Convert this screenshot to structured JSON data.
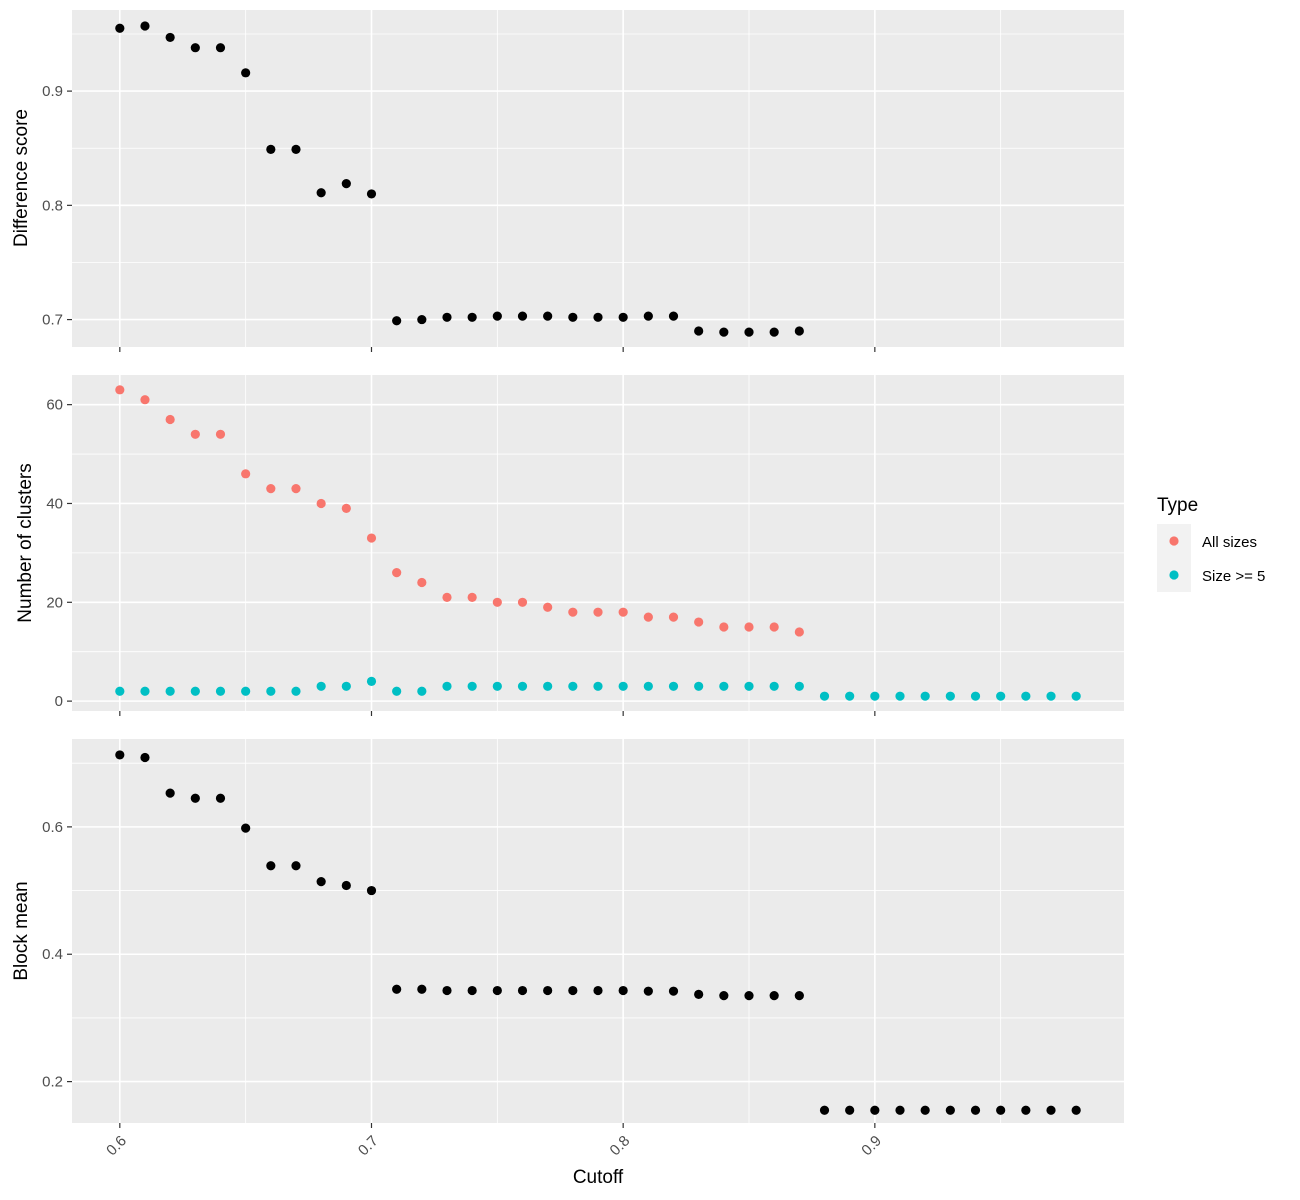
{
  "chart_data": [
    {
      "type": "scatter",
      "panel": "difference",
      "ylabel": "Difference score",
      "ylim": [
        0.676,
        0.971
      ],
      "y_breaks": [
        0.7,
        0.8,
        0.9
      ],
      "y_tick_labels": [
        "0.7",
        "0.8",
        "0.9"
      ],
      "y_minor": [
        0.75,
        0.85,
        0.95
      ],
      "series": [
        {
          "color": "#000000",
          "x": [
            0.6,
            0.61,
            0.62,
            0.63,
            0.64,
            0.65,
            0.66,
            0.67,
            0.68,
            0.69,
            0.7,
            0.71,
            0.72,
            0.73,
            0.74,
            0.75,
            0.76,
            0.77,
            0.78,
            0.79,
            0.8,
            0.81,
            0.82,
            0.83,
            0.84,
            0.85,
            0.86,
            0.87
          ],
          "y": [
            0.955,
            0.957,
            0.947,
            0.938,
            0.938,
            0.916,
            0.849,
            0.849,
            0.811,
            0.819,
            0.81,
            0.699,
            0.7,
            0.702,
            0.702,
            0.703,
            0.703,
            0.703,
            0.702,
            0.702,
            0.702,
            0.703,
            0.703,
            0.69,
            0.689,
            0.689,
            0.689,
            0.69
          ]
        }
      ]
    },
    {
      "type": "scatter",
      "panel": "clusters",
      "ylabel": "Number of clusters",
      "ylim": [
        -2,
        66
      ],
      "y_breaks": [
        0,
        20,
        40,
        60
      ],
      "y_tick_labels": [
        "0",
        "20",
        "40",
        "60"
      ],
      "y_minor": [
        10,
        30,
        50
      ],
      "series": [
        {
          "name": "All sizes",
          "color": "#F8766D",
          "x": [
            0.6,
            0.61,
            0.62,
            0.63,
            0.64,
            0.65,
            0.66,
            0.67,
            0.68,
            0.69,
            0.7,
            0.71,
            0.72,
            0.73,
            0.74,
            0.75,
            0.76,
            0.77,
            0.78,
            0.79,
            0.8,
            0.81,
            0.82,
            0.83,
            0.84,
            0.85,
            0.86,
            0.87
          ],
          "y": [
            63,
            61,
            57,
            54,
            54,
            46,
            43,
            43,
            40,
            39,
            33,
            26,
            24,
            21,
            21,
            20,
            20,
            19,
            18,
            18,
            18,
            17,
            17,
            16,
            15,
            15,
            15,
            14
          ]
        },
        {
          "name": "Size >= 5",
          "color": "#00BFC4",
          "x": [
            0.6,
            0.61,
            0.62,
            0.63,
            0.64,
            0.65,
            0.66,
            0.67,
            0.68,
            0.69,
            0.7,
            0.71,
            0.72,
            0.73,
            0.74,
            0.75,
            0.76,
            0.77,
            0.78,
            0.79,
            0.8,
            0.81,
            0.82,
            0.83,
            0.84,
            0.85,
            0.86,
            0.87,
            0.88,
            0.89,
            0.9,
            0.91,
            0.92,
            0.93,
            0.94,
            0.95,
            0.96,
            0.97,
            0.98
          ],
          "y": [
            2,
            2,
            2,
            2,
            2,
            2,
            2,
            2,
            3,
            3,
            4,
            2,
            2,
            3,
            3,
            3,
            3,
            3,
            3,
            3,
            3,
            3,
            3,
            3,
            3,
            3,
            3,
            3,
            1,
            1,
            1,
            1,
            1,
            1,
            1,
            1,
            1,
            1,
            1
          ]
        }
      ]
    },
    {
      "type": "scatter",
      "panel": "block",
      "ylabel": "Block mean",
      "ylim": [
        0.135,
        0.738
      ],
      "y_breaks": [
        0.2,
        0.4,
        0.6
      ],
      "y_tick_labels": [
        "0.2",
        "0.4",
        "0.6"
      ],
      "y_minor": [
        0.3,
        0.5,
        0.7
      ],
      "series": [
        {
          "color": "#000000",
          "x": [
            0.6,
            0.61,
            0.62,
            0.63,
            0.64,
            0.65,
            0.66,
            0.67,
            0.68,
            0.69,
            0.7,
            0.71,
            0.72,
            0.73,
            0.74,
            0.75,
            0.76,
            0.77,
            0.78,
            0.79,
            0.8,
            0.81,
            0.82,
            0.83,
            0.84,
            0.85,
            0.86,
            0.87,
            0.88,
            0.89,
            0.9,
            0.91,
            0.92,
            0.93,
            0.94,
            0.95,
            0.96,
            0.97,
            0.98
          ],
          "y": [
            0.713,
            0.709,
            0.653,
            0.645,
            0.645,
            0.598,
            0.539,
            0.539,
            0.514,
            0.508,
            0.5,
            0.345,
            0.345,
            0.343,
            0.343,
            0.343,
            0.343,
            0.343,
            0.343,
            0.343,
            0.343,
            0.342,
            0.342,
            0.337,
            0.335,
            0.335,
            0.335,
            0.335,
            0.155,
            0.155,
            0.155,
            0.155,
            0.155,
            0.155,
            0.155,
            0.155,
            0.155,
            0.155,
            0.155
          ]
        }
      ]
    }
  ],
  "x_axis": {
    "title": "Cutoff",
    "xlim": [
      0.581,
      0.999
    ],
    "breaks": [
      0.6,
      0.7,
      0.8,
      0.9
    ],
    "tick_labels": [
      "0.6",
      "0.7",
      "0.8",
      "0.9"
    ],
    "minor": [
      0.65,
      0.75,
      0.85,
      0.95
    ]
  },
  "legend": {
    "title": "Type",
    "placement": "right",
    "items": [
      {
        "label": "All sizes",
        "color": "#F8766D"
      },
      {
        "label": "Size >= 5",
        "color": "#00BFC4"
      }
    ]
  }
}
